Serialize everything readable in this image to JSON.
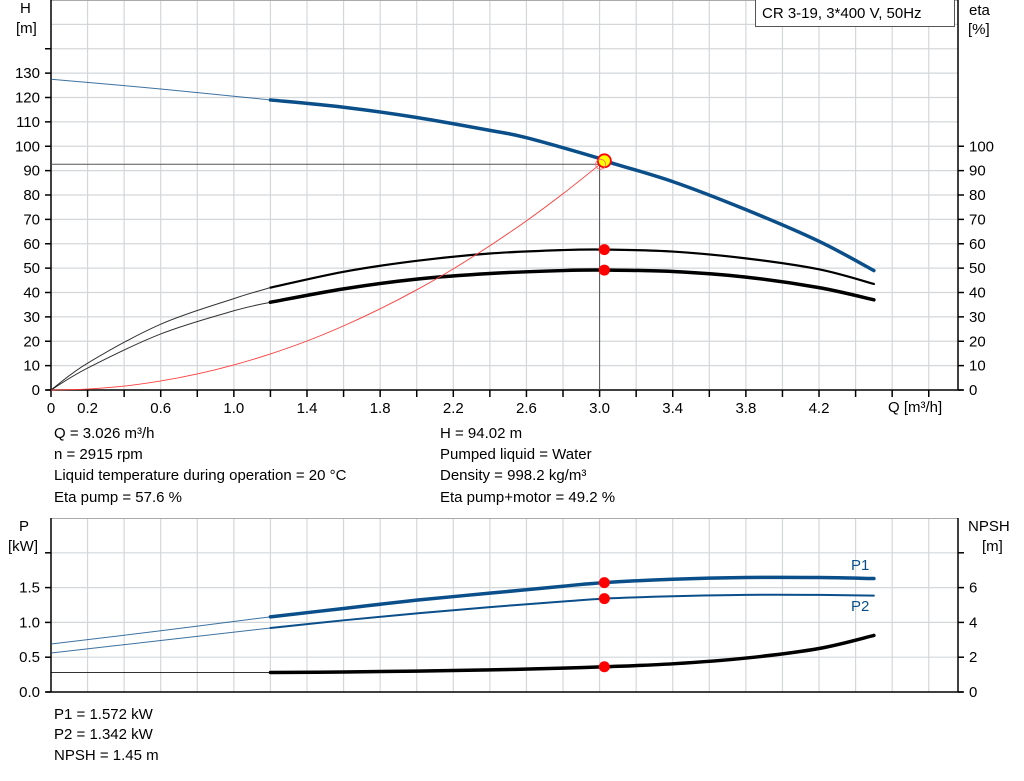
{
  "chart_data": [
    {
      "type": "line",
      "title": "CR 3-19, 3*400 V, 50Hz",
      "xlabel": "Q [m³/h]",
      "ylabel": "H\n[m]",
      "ylabel_line1": "H",
      "ylabel_line2": "[m]",
      "y2label_line1": "eta",
      "y2label_line2": "[%]",
      "xlim": [
        0,
        4.96
      ],
      "ylim": [
        0,
        160
      ],
      "y2lim": [
        0,
        160
      ],
      "x_ticks": [
        0,
        0.2,
        0.6,
        1.0,
        1.4,
        1.8,
        2.2,
        2.6,
        3.0,
        3.4,
        3.8,
        4.2
      ],
      "x_tick_labels": [
        "0",
        "0.2",
        "0.6",
        "1.0",
        "1.4",
        "1.8",
        "2.2",
        "2.6",
        "3.0",
        "3.4",
        "3.8",
        "4.2"
      ],
      "y_ticks": [
        0,
        10,
        20,
        30,
        40,
        50,
        60,
        70,
        80,
        90,
        100,
        110,
        120,
        130
      ],
      "y2_ticks": [
        0,
        10,
        20,
        30,
        40,
        50,
        60,
        70,
        80,
        90,
        100
      ],
      "grid": true,
      "series": [
        {
          "key": "H",
          "axis": "left",
          "color": "#0b4f8a",
          "thick_from": 1.2,
          "x": [
            0,
            0.6,
            1.2,
            1.6,
            2.0,
            2.4,
            2.6,
            3.0,
            3.026,
            3.4,
            3.8,
            4.2,
            4.5
          ],
          "y": [
            127.5,
            123.5,
            119,
            116,
            111.8,
            106.5,
            103.5,
            95,
            94.02,
            85.5,
            74,
            61,
            49
          ]
        },
        {
          "key": "eta_pump",
          "axis": "right",
          "color": "#000000",
          "thick_from": 1.2,
          "width": 2.2,
          "x": [
            0,
            0.2,
            0.6,
            1.0,
            1.2,
            1.6,
            2.0,
            2.4,
            2.8,
            3.026,
            3.4,
            3.8,
            4.2,
            4.5
          ],
          "y": [
            0,
            11,
            27,
            37.5,
            42,
            48.5,
            53,
            56,
            57.4,
            57.6,
            56.8,
            54,
            49.5,
            43.5
          ]
        },
        {
          "key": "eta_pump_motor",
          "axis": "right",
          "color": "#000000",
          "thick_from": 1.2,
          "width": 3.5,
          "x": [
            0,
            0.2,
            0.6,
            1.0,
            1.2,
            1.6,
            2.0,
            2.4,
            2.8,
            3.026,
            3.4,
            3.8,
            4.2,
            4.5
          ],
          "y": [
            0,
            9,
            23,
            32.5,
            36,
            41.5,
            45.5,
            47.8,
            49,
            49.2,
            48.6,
            46.3,
            42,
            37
          ]
        },
        {
          "key": "system",
          "axis": "left",
          "color": "#ff3b3b",
          "thin": true,
          "x": [
            0,
            0.2,
            0.4,
            0.6,
            0.8,
            1.0,
            1.2,
            1.4,
            1.6,
            1.8,
            2.0,
            2.2,
            2.4,
            2.6,
            2.8,
            3.026
          ],
          "y": [
            0,
            0.4,
            1.6,
            3.7,
            6.6,
            10.3,
            14.8,
            20.1,
            26.3,
            33.3,
            41.1,
            49.7,
            59.2,
            69.4,
            80.5,
            94.02
          ]
        }
      ],
      "guide": {
        "q": 3.0,
        "h": 92.6
      },
      "operating_points": [
        {
          "key": "duty",
          "axis": "left",
          "x": 3.026,
          "y": 94.02,
          "fill": "#ffff00",
          "stroke": "#ff0000"
        },
        {
          "key": "eta_pump",
          "axis": "right",
          "x": 3.026,
          "y": 57.6,
          "fill": "#ff0000"
        },
        {
          "key": "eta_pump_motor",
          "axis": "right",
          "x": 3.026,
          "y": 49.2,
          "fill": "#ff0000"
        }
      ]
    },
    {
      "type": "line",
      "ylabel_line1": "P",
      "ylabel_line2": "[kW]",
      "y2label_line1": "NPSH",
      "y2label_line2": "[m]",
      "xlim": [
        0,
        4.96
      ],
      "ylim": [
        0,
        2.5
      ],
      "y2lim": [
        0,
        10
      ],
      "y_ticks": [
        0.0,
        0.5,
        1.0,
        1.5,
        2.0
      ],
      "y_tick_labels": [
        "0.0",
        "0.5",
        "1.0",
        "1.5",
        ""
      ],
      "y2_ticks": [
        0,
        2,
        4,
        6,
        8
      ],
      "y2_tick_labels": [
        "0",
        "2",
        "4",
        "6",
        ""
      ],
      "grid": true,
      "series": [
        {
          "key": "P1",
          "name": "P1",
          "axis": "left",
          "color": "#0b4f8a",
          "thick_from": 1.2,
          "width": 3.5,
          "x": [
            0,
            0.6,
            1.2,
            1.6,
            2.0,
            2.4,
            2.8,
            3.026,
            3.4,
            3.8,
            4.2,
            4.5
          ],
          "y": [
            0.69,
            0.88,
            1.08,
            1.2,
            1.32,
            1.42,
            1.52,
            1.572,
            1.62,
            1.645,
            1.645,
            1.63
          ]
        },
        {
          "key": "P2",
          "name": "P2",
          "axis": "left",
          "color": "#0b4f8a",
          "thick_from": 1.2,
          "width": 2,
          "x": [
            0,
            0.6,
            1.2,
            1.6,
            2.0,
            2.4,
            2.8,
            3.026,
            3.4,
            3.8,
            4.2,
            4.5
          ],
          "y": [
            0.56,
            0.74,
            0.92,
            1.03,
            1.13,
            1.22,
            1.3,
            1.342,
            1.375,
            1.395,
            1.395,
            1.385
          ]
        },
        {
          "key": "NPSH",
          "axis": "right",
          "color": "#000000",
          "thick_from": 1.2,
          "width": 3.5,
          "x": [
            0,
            1.2,
            1.6,
            2.0,
            2.4,
            2.8,
            3.026,
            3.4,
            3.8,
            4.2,
            4.5
          ],
          "y": [
            1.12,
            1.12,
            1.15,
            1.2,
            1.27,
            1.37,
            1.45,
            1.62,
            1.95,
            2.5,
            3.25
          ]
        }
      ],
      "operating_points": [
        {
          "key": "P1",
          "axis": "left",
          "x": 3.026,
          "y": 1.572,
          "fill": "#ff0000"
        },
        {
          "key": "P2",
          "axis": "left",
          "x": 3.026,
          "y": 1.342,
          "fill": "#ff0000"
        },
        {
          "key": "NPSH",
          "axis": "right",
          "x": 3.026,
          "y": 1.45,
          "fill": "#ff0000"
        }
      ]
    }
  ],
  "info": {
    "q": "Q = 3.026 m³/h",
    "n": "n = 2915 rpm",
    "temp": "Liquid temperature during operation = 20 °C",
    "eta_pump": "Eta pump = 57.6 %",
    "h": "H = 94.02 m",
    "liquid": "Pumped liquid = Water",
    "density": "Density = 998.2 kg/m³",
    "eta_total": "Eta pump+motor = 49.2 %",
    "p1": "P1 = 1.572 kW",
    "p2": "P2 = 1.342 kW",
    "npsh": "NPSH = 1.45 m"
  }
}
